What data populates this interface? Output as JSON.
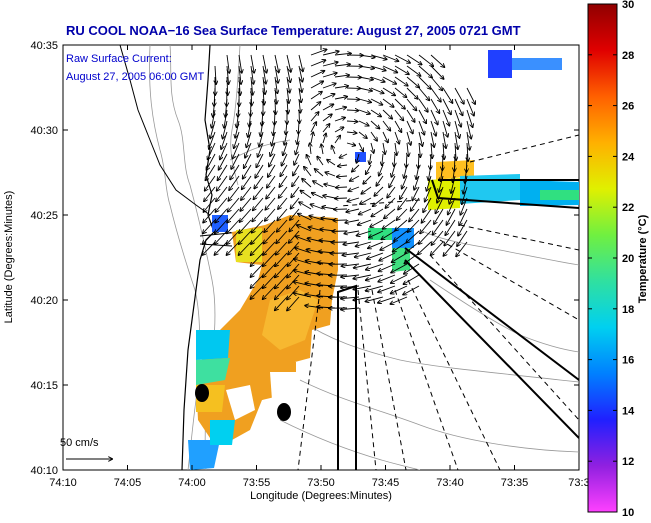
{
  "title": "RU COOL  NOAA−16  Sea Surface Temperature:  August 27, 2005 0721 GMT",
  "annotation": {
    "line1": "Raw Surface Current:",
    "line2": "August 27, 2005 06:00 GMT"
  },
  "scale_label": "50 cm/s",
  "axes": {
    "x_label": "Longitude (Degrees:Minutes)",
    "y_label": "Latitude (Degrees:Minutes)",
    "x_ticks": [
      "74:10",
      "74:05",
      "74:00",
      "73:55",
      "73:50",
      "73:45",
      "73:40",
      "73:35",
      "73:3"
    ],
    "y_ticks": [
      "40:35",
      "40:30",
      "40:25",
      "40:20",
      "40:15",
      "40:10"
    ]
  },
  "colorbar": {
    "label": "Temperature (°C)",
    "ticks": [
      "30",
      "28",
      "26",
      "24",
      "22",
      "20",
      "18",
      "16",
      "14",
      "12",
      "10"
    ],
    "min": 10,
    "max": 30,
    "colors": [
      "#ff40ff",
      "#9020e0",
      "#2020ff",
      "#0080ff",
      "#00d0f0",
      "#30e0a0",
      "#70f040",
      "#e0f000",
      "#ffb000",
      "#ff6000",
      "#e00000",
      "#900000"
    ]
  }
}
